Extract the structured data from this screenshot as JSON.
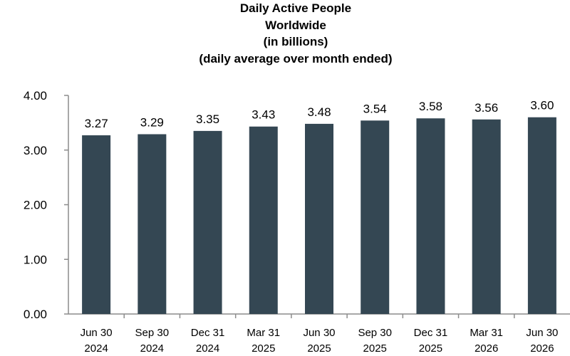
{
  "chart_data": {
    "type": "bar",
    "title_lines": [
      "Daily Active People",
      "Worldwide",
      "(in billions)",
      "(daily average over month ended)"
    ],
    "xlabel": "",
    "ylabel": "",
    "categories": [
      [
        "Jun 30",
        "2024"
      ],
      [
        "Sep 30",
        "2024"
      ],
      [
        "Dec 31",
        "2024"
      ],
      [
        "Mar 31",
        "2025"
      ],
      [
        "Jun 30",
        "2025"
      ],
      [
        "Sep 30",
        "2025"
      ],
      [
        "Dec 31",
        "2025"
      ],
      [
        "Mar 31",
        "2026"
      ],
      [
        "Jun 30",
        "2026"
      ]
    ],
    "values": [
      3.27,
      3.29,
      3.35,
      3.43,
      3.48,
      3.54,
      3.58,
      3.56,
      3.6
    ],
    "value_labels": [
      "3.27",
      "3.29",
      "3.35",
      "3.43",
      "3.48",
      "3.54",
      "3.58",
      "3.56",
      "3.60"
    ],
    "ylim": [
      0,
      4
    ],
    "yticks": [
      0,
      1,
      2,
      3,
      4
    ],
    "ytick_labels": [
      "0.00",
      "1.00",
      "2.00",
      "3.00",
      "4.00"
    ],
    "grid": false,
    "legend": "none",
    "colors": {
      "bar": "#344753",
      "axis": "#8c8c8c"
    }
  }
}
